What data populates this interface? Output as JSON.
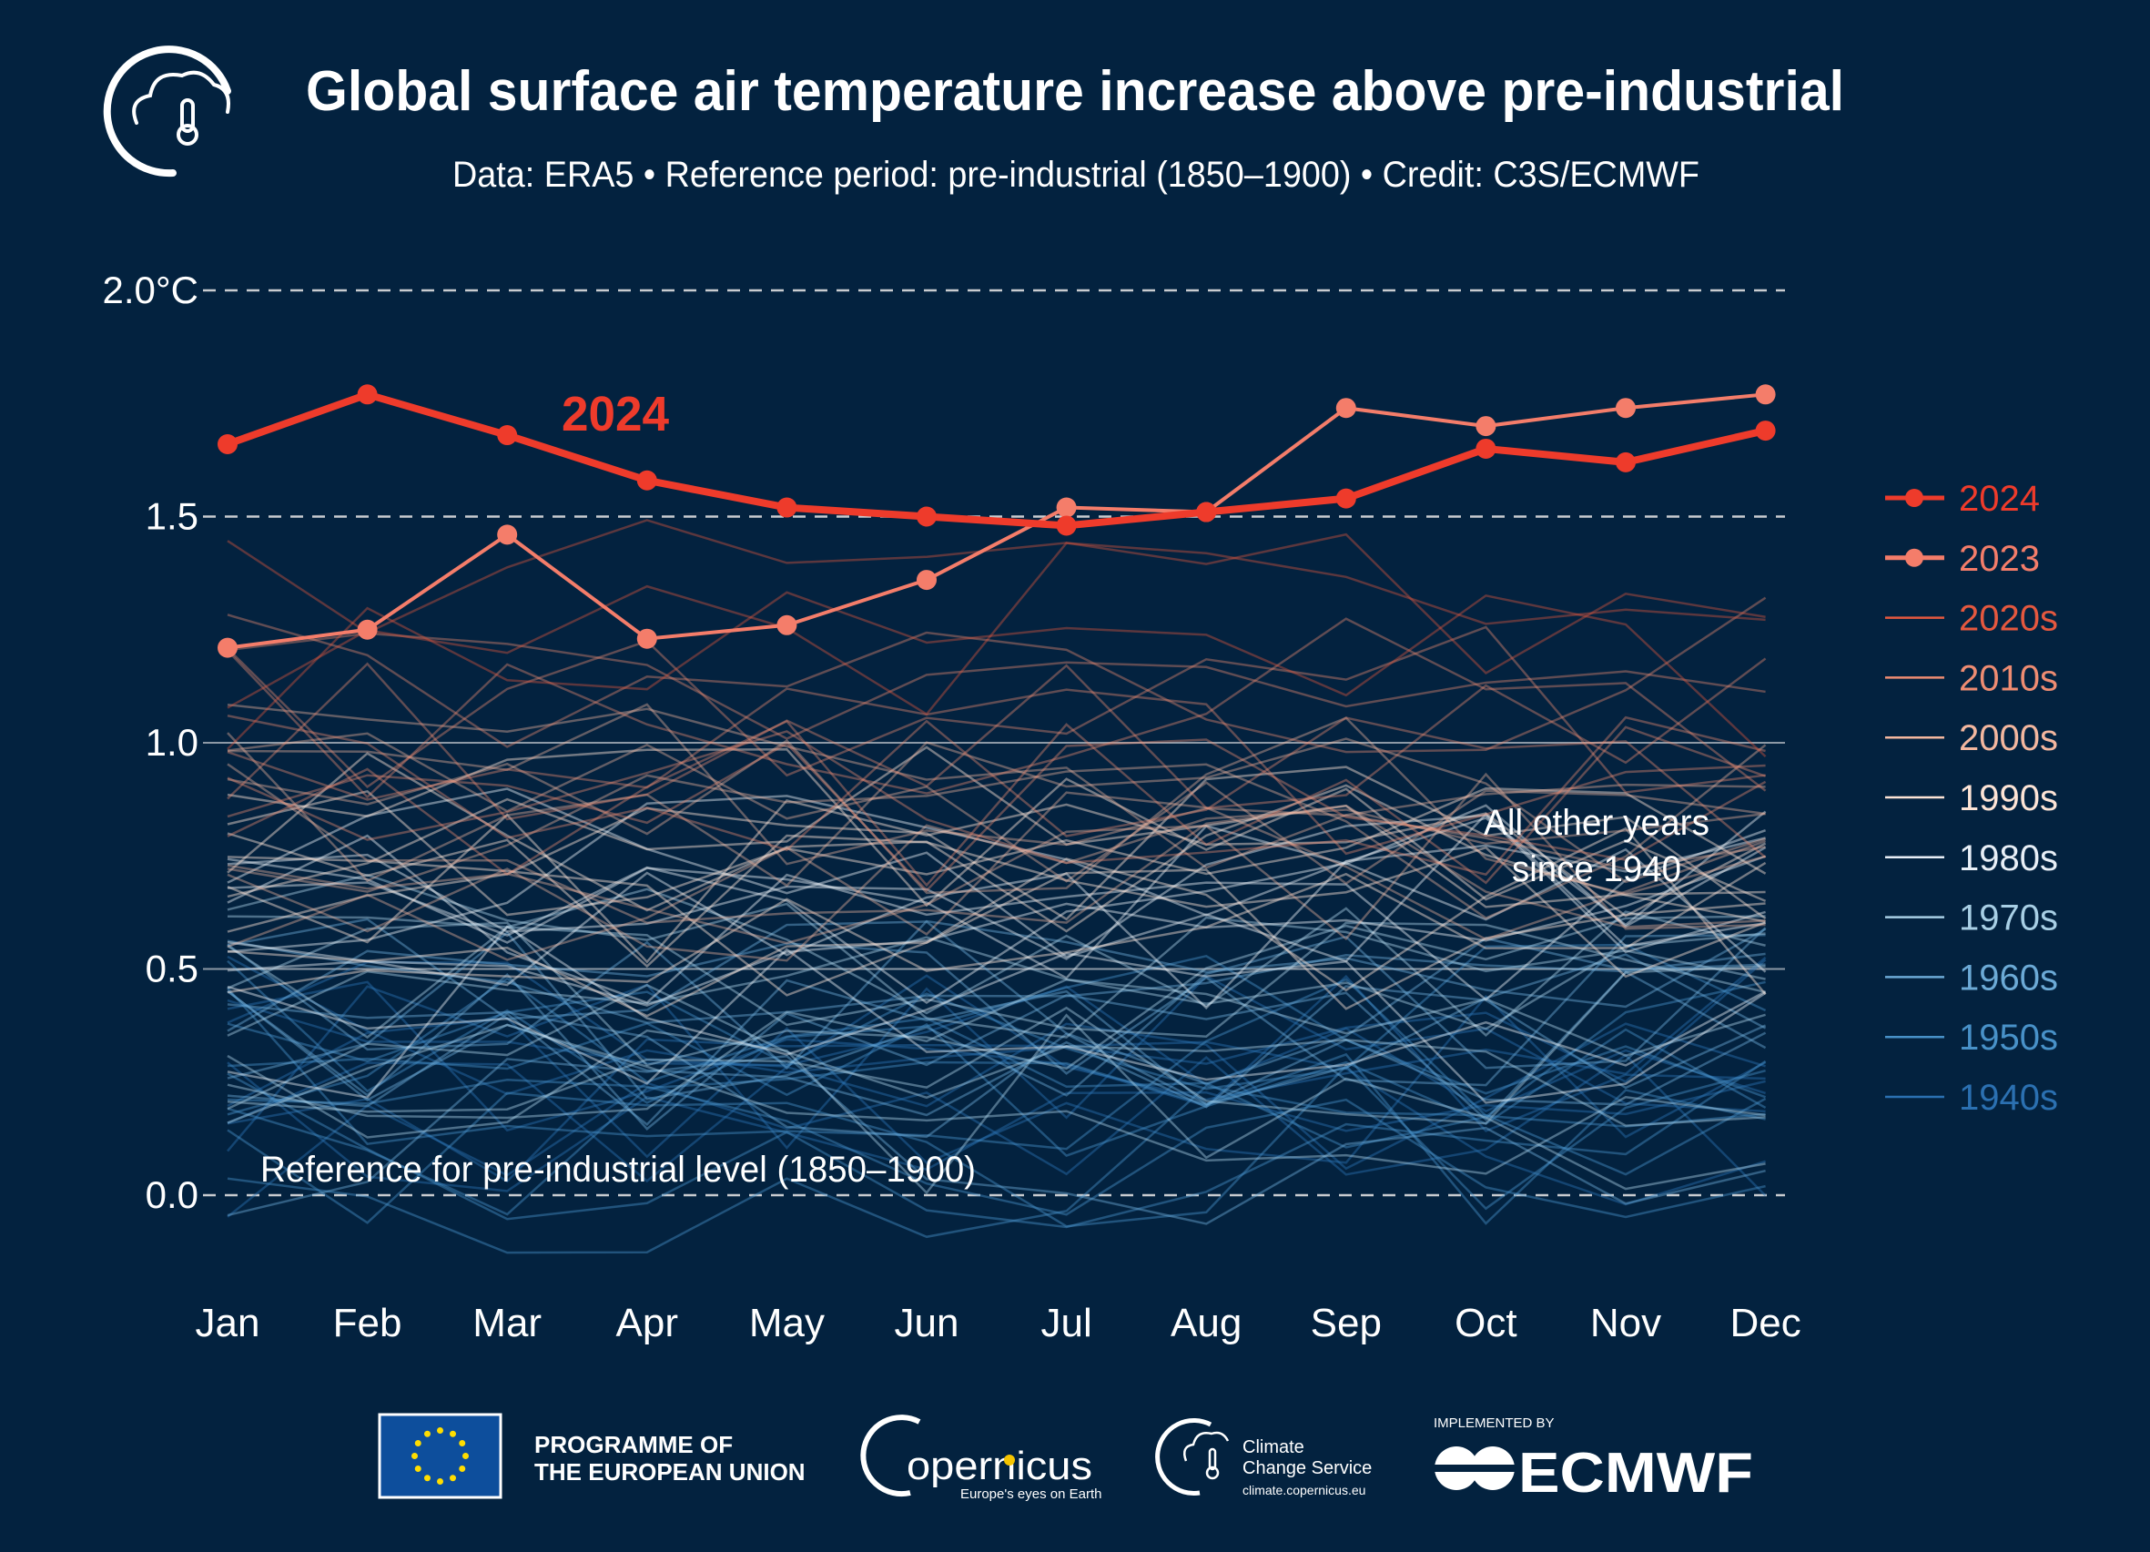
{
  "header": {
    "title": "Global surface air temperature increase above pre-industrial",
    "subtitle": "Data: ERA5 • Reference period: pre-industrial (1850–1900) • Credit: C3S/ECMWF",
    "logo_icon": "cloud-thermometer-icon"
  },
  "chart_data": {
    "type": "line",
    "title": "Global surface air temperature increase above pre-industrial",
    "categories": [
      "Jan",
      "Feb",
      "Mar",
      "Apr",
      "May",
      "Jun",
      "Jul",
      "Aug",
      "Sep",
      "Oct",
      "Nov",
      "Dec"
    ],
    "ylim": [
      -0.25,
      2.0
    ],
    "yticks": [
      {
        "value": 2.0,
        "label": "2.0°C",
        "style": "dashed"
      },
      {
        "value": 1.5,
        "label": "1.5",
        "style": "dashed"
      },
      {
        "value": 1.0,
        "label": "1.0",
        "style": "solid"
      },
      {
        "value": 0.5,
        "label": "0.5",
        "style": "solid"
      },
      {
        "value": 0.0,
        "label": "0.0",
        "style": "dashed"
      }
    ],
    "grid": true,
    "legend_position": "right",
    "series": [
      {
        "name": "2024",
        "color": "#ee3b2b",
        "markers": true,
        "values": [
          1.66,
          1.77,
          1.68,
          1.58,
          1.52,
          1.5,
          1.48,
          1.51,
          1.54,
          1.65,
          1.62,
          1.69
        ]
      },
      {
        "name": "2023",
        "color": "#f47d6a",
        "markers": true,
        "values": [
          1.21,
          1.25,
          1.46,
          1.23,
          1.26,
          1.36,
          1.52,
          1.51,
          1.74,
          1.7,
          1.74,
          1.77
        ]
      }
    ],
    "decades": [
      {
        "name": "2020s",
        "color": "#e4583f",
        "approx_mean": 1.25
      },
      {
        "name": "2010s",
        "color": "#ee8c72",
        "approx_mean": 1.02
      },
      {
        "name": "2000s",
        "color": "#f3b79f",
        "approx_mean": 0.83
      },
      {
        "name": "1990s",
        "color": "#fde4d6",
        "approx_mean": 0.66
      },
      {
        "name": "1980s",
        "color": "#e8eff7",
        "approx_mean": 0.55
      },
      {
        "name": "1970s",
        "color": "#a8cfe5",
        "approx_mean": 0.36
      },
      {
        "name": "1960s",
        "color": "#6caad6",
        "approx_mean": 0.28
      },
      {
        "name": "1950s",
        "color": "#4891c8",
        "approx_mean": 0.22
      },
      {
        "name": "1940s",
        "color": "#2b70b1",
        "approx_mean": 0.3
      }
    ],
    "annotations": {
      "highlight_label": "2024",
      "other_years": [
        "All other years",
        "since 1940"
      ],
      "reference": "Reference for pre-industrial level (1850–1900)"
    }
  },
  "footer": {
    "eu_line1": "PROGRAMME OF",
    "eu_line2": "THE EUROPEAN UNION",
    "copernicus": "opernicus",
    "copernicus_tagline": "Europe's eyes on Earth",
    "c3s_line1": "Climate",
    "c3s_line2": "Change Service",
    "c3s_url": "climate.copernicus.eu",
    "implemented_by": "IMPLEMENTED BY",
    "ecmwf": "ECMWF"
  }
}
